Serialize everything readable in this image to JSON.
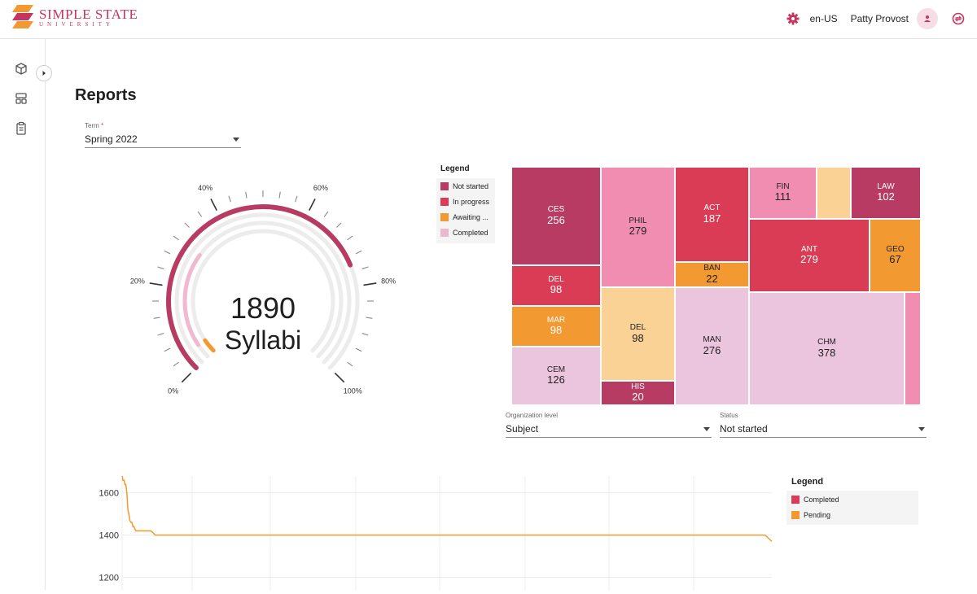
{
  "header": {
    "logo_name": "SIMPLE STATE",
    "logo_sub": "UNIVERSITY",
    "language": "en-US",
    "user_name": "Patty Provost"
  },
  "page": {
    "title": "Reports"
  },
  "term_select": {
    "label": "Term",
    "required_mark": "*",
    "value": "Spring 2022"
  },
  "gauge": {
    "total": "1890",
    "unit": "Syllabi",
    "ticks": [
      "0%",
      "20%",
      "40%",
      "60%",
      "80%",
      "100%"
    ],
    "arcs": [
      {
        "name": "Not started",
        "fraction": 0.75,
        "color": "#b83b63"
      },
      {
        "name": "Completed",
        "fraction": 0.3,
        "color": "#f0b9cf"
      },
      {
        "name": "Awaiting",
        "fraction": 0.04,
        "color": "#f29a31"
      }
    ]
  },
  "treemap_legend": {
    "title": "Legend",
    "items": [
      {
        "label": "Not started",
        "color": "#b83b63"
      },
      {
        "label": "In progress",
        "color": "#da3c55"
      },
      {
        "label": "Awaiting ...",
        "color": "#f29a31"
      },
      {
        "label": "Completed",
        "color": "#ebb8d2"
      }
    ]
  },
  "treemap": {
    "tiles": [
      {
        "name": "CES",
        "value": "256",
        "color": "#b83b63"
      },
      {
        "name": "DEL",
        "value": "98",
        "color": "#da3c55"
      },
      {
        "name": "MAR",
        "value": "98",
        "color": "#f29a31"
      },
      {
        "name": "CEM",
        "value": "126",
        "color": "#ebc4de",
        "dark": true
      },
      {
        "name": "PHIL",
        "value": "279",
        "color": "#f18db0",
        "dark": true
      },
      {
        "name": "DEL",
        "value": "98",
        "color": "#fbd296",
        "dark": true
      },
      {
        "name": "HIS",
        "value": "20",
        "color": "#b83b63"
      },
      {
        "name": "ACT",
        "value": "187",
        "color": "#da3c55"
      },
      {
        "name": "BAN",
        "value": "22",
        "color": "#f29a31",
        "dark": true
      },
      {
        "name": "FIN",
        "value": "111",
        "color": "#f18db0",
        "dark": true
      },
      {
        "name": "",
        "value": "",
        "color": "#fbd296"
      },
      {
        "name": "LAW",
        "value": "102",
        "color": "#b83b63"
      },
      {
        "name": "ANT",
        "value": "279",
        "color": "#da3c55"
      },
      {
        "name": "GEO",
        "value": "67",
        "color": "#f29a31",
        "dark": true
      },
      {
        "name": "MAN",
        "value": "276",
        "color": "#ebc4de",
        "dark": true
      },
      {
        "name": "CHM",
        "value": "378",
        "color": "#ebc4de",
        "dark": true
      },
      {
        "name": "",
        "value": "",
        "color": "#f18db0"
      }
    ]
  },
  "org_select": {
    "label": "Organization level",
    "value": "Subject"
  },
  "status_select": {
    "label": "Status",
    "value": "Not started"
  },
  "chart_data": {
    "type": "line",
    "yticks": [
      1200,
      1400,
      1600
    ],
    "ylim": [
      1140,
      1680
    ],
    "series": [
      {
        "name": "Pending",
        "color": "#f29a31",
        "x": [
          0,
          0.4,
          1.2,
          1.6,
          2.2,
          2.8,
          3.4,
          4.0,
          4.5,
          5.2,
          5.8,
          6.4,
          7.0,
          8.0,
          9.0,
          11.0,
          13.0,
          15.0,
          17.0,
          18.5,
          19.5,
          20,
          20.6,
          24,
          200,
          380,
          384
        ],
        "y": [
          1690,
          1660,
          1660,
          1640,
          1640,
          1600,
          1520,
          1500,
          1470,
          1460,
          1460,
          1440,
          1440,
          1420,
          1420,
          1420,
          1420,
          1420,
          1420,
          1410,
          1400,
          1400,
          1400,
          1400,
          1400,
          1400,
          1370
        ]
      },
      {
        "name": "Completed",
        "color": "#da3c55",
        "x": [],
        "y": []
      }
    ]
  },
  "line_legend": {
    "title": "Legend",
    "items": [
      {
        "label": "Completed",
        "color": "#da3c55"
      },
      {
        "label": "Pending",
        "color": "#f29a31"
      }
    ]
  }
}
